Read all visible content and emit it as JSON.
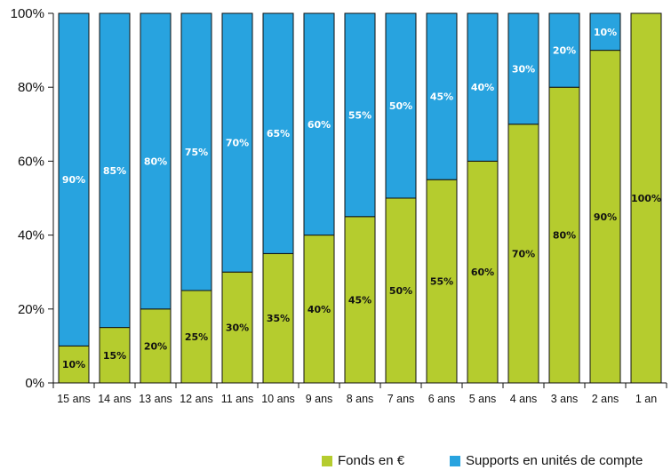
{
  "chart_data": {
    "type": "bar",
    "stacked": true,
    "categories": [
      "15 ans",
      "14 ans",
      "13 ans",
      "12 ans",
      "11 ans",
      "10 ans",
      "9 ans",
      "8 ans",
      "7 ans",
      "6 ans",
      "5 ans",
      "4 ans",
      "3 ans",
      "2 ans",
      "1 an"
    ],
    "series": [
      {
        "name": "Fonds en €",
        "color": "#b5cc2e",
        "values": [
          10,
          15,
          20,
          25,
          30,
          35,
          40,
          45,
          50,
          55,
          60,
          70,
          80,
          90,
          100
        ],
        "labels": [
          "10%",
          "15%",
          "20%",
          "25%",
          "30%",
          "35%",
          "40%",
          "45%",
          "50%",
          "55%",
          "60%",
          "70%",
          "80%",
          "90%",
          "100%"
        ],
        "label_color": "#111111"
      },
      {
        "name": "Supports en unités de compte",
        "color": "#28a3df",
        "values": [
          90,
          85,
          80,
          75,
          70,
          65,
          60,
          55,
          50,
          45,
          40,
          30,
          20,
          10,
          0
        ],
        "labels": [
          "90%",
          "85%",
          "80%",
          "75%",
          "70%",
          "65%",
          "60%",
          "55%",
          "50%",
          "45%",
          "40%",
          "30%",
          "20%",
          "10%",
          ""
        ],
        "label_color": "#ffffff"
      }
    ],
    "yticks": [
      "0%",
      "20%",
      "40%",
      "60%",
      "80%",
      "100%"
    ],
    "ylim": [
      0,
      100
    ],
    "legend": "bottom-right",
    "grid": false
  }
}
